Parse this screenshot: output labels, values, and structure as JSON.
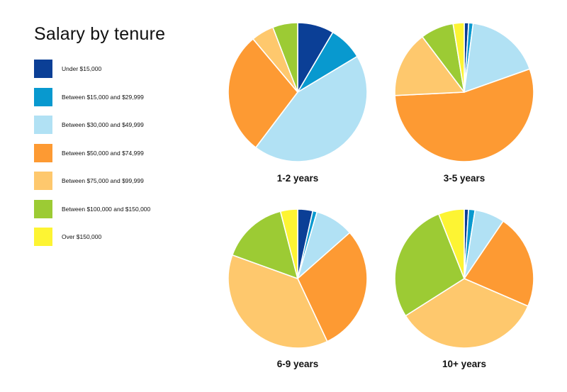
{
  "chart_data": {
    "type": "pie",
    "title": "Salary by tenure",
    "legend_position": "left",
    "categories": [
      "Under $15,000",
      "Between $15,000 and $29,999",
      "Between $30,000 and $49,999",
      "Between $50,000 and $74,999",
      "Between $75,000 and $99,999",
      "Between $100,000 and $150,000",
      "Over $150,000"
    ],
    "colors": [
      "#0b3f96",
      "#0899cf",
      "#b1e1f4",
      "#fd9a33",
      "#fec86d",
      "#9ccb34",
      "#fdf433"
    ],
    "pies": [
      {
        "label": "1-2 years",
        "values": [
          8,
          7.5,
          41.5,
          27,
          5,
          5.5,
          0
        ]
      },
      {
        "label": "3-5 years",
        "values": [
          1,
          1,
          17,
          53,
          15,
          7.5,
          2.5
        ]
      },
      {
        "label": "6-9 years",
        "values": [
          3.5,
          1,
          9,
          29.5,
          37.5,
          15.5,
          4
        ]
      },
      {
        "label": "10+ years",
        "values": [
          1,
          1.5,
          7,
          22,
          34.5,
          28,
          6
        ]
      }
    ]
  }
}
